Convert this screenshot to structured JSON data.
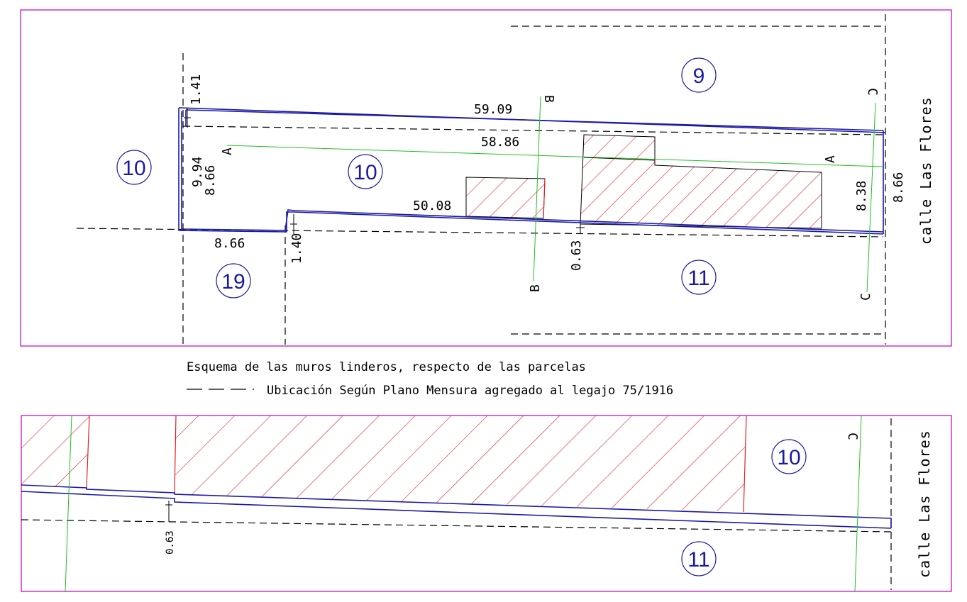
{
  "colors": {
    "frame": "#c000c0",
    "boundary": "#1a1aa8",
    "hatch": "#e02020",
    "section": "#20c020",
    "dashed": "#000000"
  },
  "top": {
    "parcels": [
      "10",
      "10",
      "9",
      "19",
      "11"
    ],
    "dims": {
      "top_wall": "59.09",
      "inner_length": "58.86",
      "building_length": "50.08",
      "back_offset": "1.41",
      "back_width_a": "9.94",
      "back_width_b": "8.66",
      "bottom_left": "8.66",
      "bottom_step": "1.40",
      "offset": "0.63",
      "front_inner": "8.38",
      "front": "8.66"
    },
    "sections": {
      "a": "A",
      "b": "B",
      "c": "C"
    },
    "street": "calle Las Flores"
  },
  "legend": {
    "title": "Esquema de las muros linderos, respecto de las parcelas",
    "dashed_label": "Ubicación Según Plano Mensura agregado al legajo 75/1916"
  },
  "bottom": {
    "parcels": [
      "10",
      "11"
    ],
    "offset": "0.63",
    "section": "C",
    "street": "calle Las Flores"
  }
}
